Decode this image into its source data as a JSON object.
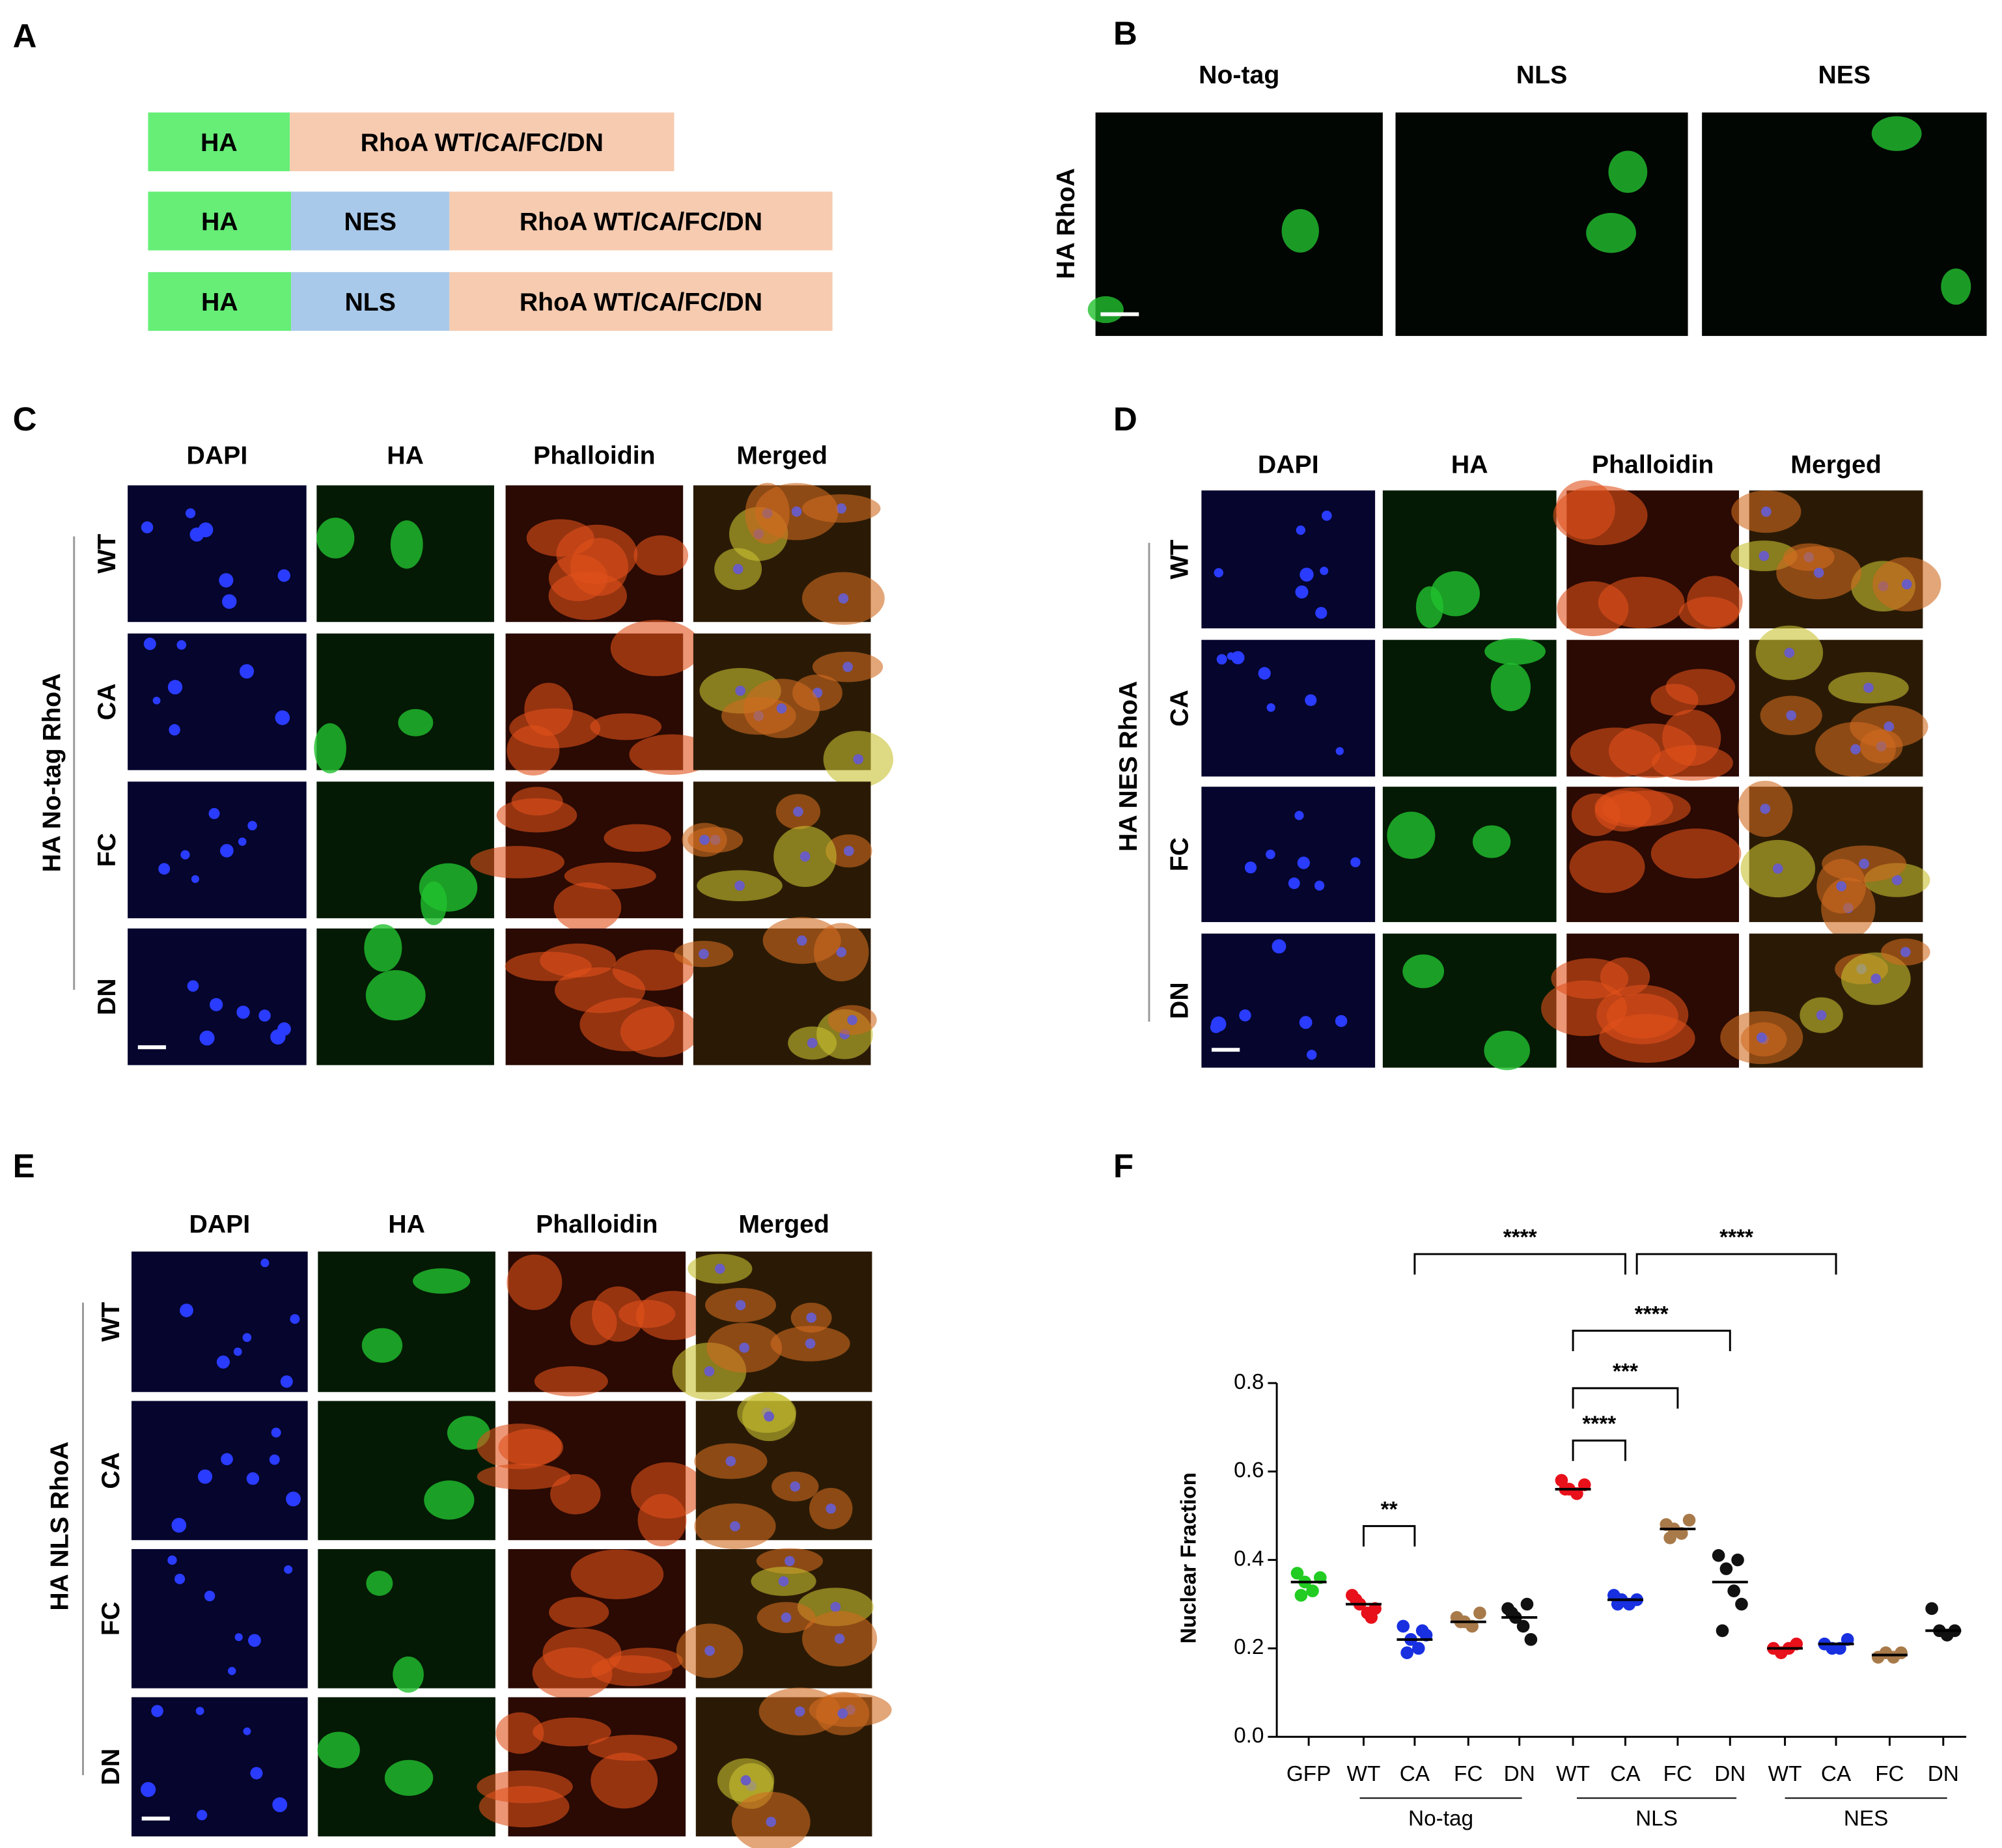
{
  "panels": {
    "a": {
      "label": "A",
      "constructs": [
        [
          "HA",
          "RhoA WT/CA/FC/DN"
        ],
        [
          "HA",
          "NES",
          "RhoA WT/CA/FC/DN"
        ],
        [
          "HA",
          "NLS",
          "RhoA WT/CA/FC/DN"
        ]
      ]
    },
    "b": {
      "label": "B",
      "columns": [
        "No-tag",
        "NLS",
        "NES"
      ],
      "row_label": "HA  RhoA"
    },
    "c": {
      "label": "C",
      "columns": [
        "DAPI",
        "HA",
        "Phalloidin",
        "Merged"
      ],
      "rows": [
        "WT",
        "CA",
        "FC",
        "DN"
      ],
      "side_label": "HA No-tag RhoA"
    },
    "d": {
      "label": "D",
      "columns": [
        "DAPI",
        "HA",
        "Phalloidin",
        "Merged"
      ],
      "rows": [
        "WT",
        "CA",
        "FC",
        "DN"
      ],
      "side_label": "HA NES RhoA"
    },
    "e": {
      "label": "E",
      "columns": [
        "DAPI",
        "HA",
        "Phalloidin",
        "Merged"
      ],
      "rows": [
        "WT",
        "CA",
        "FC",
        "DN"
      ],
      "side_label": "HA NLS RhoA"
    },
    "f": {
      "label": "F"
    }
  },
  "chart_data": {
    "type": "dot",
    "ylabel": "Nuclear Fraction",
    "categories": [
      "GFP",
      "WT",
      "CA",
      "FC",
      "DN",
      "WT",
      "CA",
      "FC",
      "DN",
      "WT",
      "CA",
      "FC",
      "DN"
    ],
    "colors": [
      "#22cc22",
      "#e8101a",
      "#1830e0",
      "#a87a4a",
      "#111111",
      "#e8101a",
      "#1830e0",
      "#a87a4a",
      "#111111",
      "#e8101a",
      "#1830e0",
      "#a87a4a",
      "#111111"
    ],
    "values": [
      [
        0.37,
        0.35,
        0.33,
        0.36,
        0.32
      ],
      [
        0.32,
        0.3,
        0.28,
        0.29,
        0.31,
        0.27
      ],
      [
        0.25,
        0.22,
        0.2,
        0.23,
        0.19,
        0.24
      ],
      [
        0.27,
        0.26,
        0.25,
        0.28,
        0.26
      ],
      [
        0.29,
        0.27,
        0.25,
        0.22,
        0.28,
        0.3
      ],
      [
        0.58,
        0.56,
        0.55,
        0.57,
        0.56
      ],
      [
        0.32,
        0.31,
        0.3,
        0.31,
        0.3
      ],
      [
        0.48,
        0.47,
        0.46,
        0.49,
        0.45
      ],
      [
        0.41,
        0.38,
        0.33,
        0.3,
        0.24,
        0.4
      ],
      [
        0.2,
        0.19,
        0.2,
        0.21
      ],
      [
        0.21,
        0.2,
        0.2,
        0.22
      ],
      [
        0.18,
        0.19,
        0.18,
        0.19
      ],
      [
        0.29,
        0.24,
        0.23,
        0.24
      ]
    ],
    "means": [
      0.35,
      0.3,
      0.22,
      0.26,
      0.27,
      0.56,
      0.31,
      0.47,
      0.35,
      0.2,
      0.21,
      0.185,
      0.24
    ],
    "groups": [
      "No-tag",
      "NLS",
      "NES"
    ],
    "annotations": [
      "**",
      "****",
      "***",
      "****",
      "****",
      "****"
    ],
    "ylim": [
      0,
      0.8
    ],
    "yticks": [
      {
        "value": 0,
        "label": "0.0"
      },
      0.2,
      0.4,
      0.6,
      0.8
    ]
  }
}
